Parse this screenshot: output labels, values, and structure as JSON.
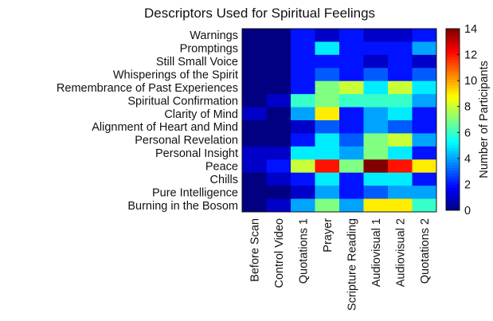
{
  "chart_data": {
    "type": "heatmap",
    "title": "Descriptors Used for Spiritual Feelings",
    "xlabel": "",
    "ylabel": "",
    "x_categories": [
      "Before Scan",
      "Control Video",
      "Quotations 1",
      "Prayer",
      "Scripture Reading",
      "Audiovisual 1",
      "Audiovisual 2",
      "Quotations 2"
    ],
    "y_categories": [
      "Warnings",
      "Promptings",
      "Still Small Voice",
      "Whisperings of the Spirit",
      "Remembrance of Past Experiences",
      "Spiritual Confirmation",
      "Clarity of Mind",
      "Alignment of Heart and Mind",
      "Personal Revelation",
      "Personal Insight",
      "Peace",
      "Chills",
      "Pure Intelligence",
      "Burning in the Bosom"
    ],
    "values": [
      [
        0,
        0,
        2,
        1,
        2,
        1,
        1,
        2
      ],
      [
        0,
        0,
        2,
        5,
        2,
        2,
        2,
        4
      ],
      [
        0,
        0,
        2,
        2,
        2,
        1,
        2,
        1
      ],
      [
        0,
        0,
        2,
        3,
        2,
        3,
        2,
        3
      ],
      [
        0,
        0,
        2,
        7,
        8,
        5,
        8,
        5
      ],
      [
        0,
        1,
        6,
        7,
        6,
        6,
        6,
        4
      ],
      [
        1,
        0,
        4,
        9,
        2,
        4,
        5,
        2
      ],
      [
        0,
        0,
        1,
        3,
        2,
        4,
        3,
        2
      ],
      [
        0,
        0,
        2,
        5,
        3,
        7,
        8,
        4
      ],
      [
        1,
        1,
        5,
        5,
        4,
        7,
        5,
        2
      ],
      [
        1,
        2,
        8,
        12,
        7,
        14,
        12,
        9
      ],
      [
        0,
        1,
        2,
        5,
        2,
        5,
        5,
        2
      ],
      [
        0,
        0,
        1,
        4,
        2,
        3,
        4,
        4
      ],
      [
        0,
        1,
        4,
        7,
        4,
        9,
        9,
        6
      ]
    ],
    "colorbar": {
      "label": "Number of Participants",
      "min": 0,
      "max": 14,
      "ticks": [
        0,
        2,
        4,
        6,
        8,
        10,
        12,
        14
      ],
      "colormap": "jet"
    }
  }
}
